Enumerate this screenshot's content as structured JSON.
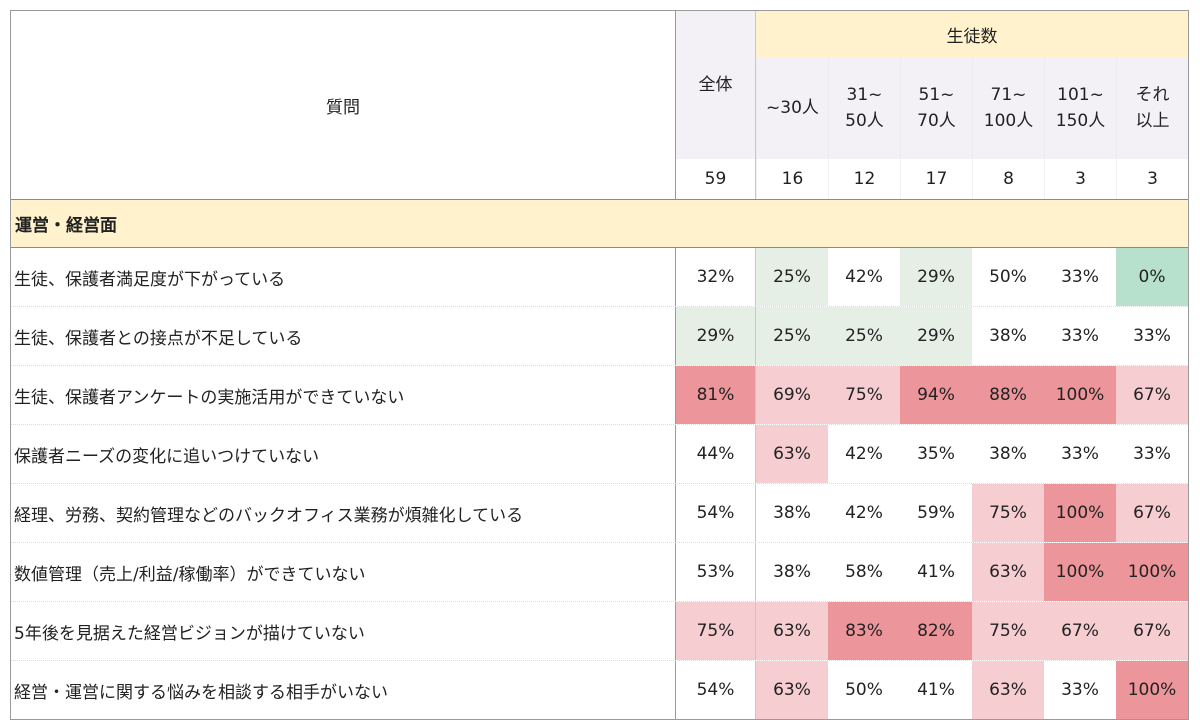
{
  "header": {
    "question_label": "質問",
    "total_label": "全体",
    "group_label": "生徒数",
    "groups": [
      "~30人",
      "31~\n50人",
      "51~\n70人",
      "71~\n100人",
      "101~\n150人",
      "それ\n以上"
    ],
    "total_count": "59",
    "group_counts": [
      "16",
      "12",
      "17",
      "8",
      "3",
      "3"
    ]
  },
  "section": {
    "label": "運営・経営面"
  },
  "rows": [
    {
      "q": "生徒、保護者満足度が下がっている",
      "total": "32%",
      "vals": [
        "25%",
        "42%",
        "29%",
        "50%",
        "33%",
        "0%"
      ]
    },
    {
      "q": "生徒、保護者との接点が不足している",
      "total": "29%",
      "vals": [
        "25%",
        "25%",
        "29%",
        "38%",
        "33%",
        "33%"
      ]
    },
    {
      "q": "生徒、保護者アンケートの実施活用ができていない",
      "total": "81%",
      "vals": [
        "69%",
        "75%",
        "94%",
        "88%",
        "100%",
        "67%"
      ]
    },
    {
      "q": "保護者ニーズの変化に追いつけていない",
      "total": "44%",
      "vals": [
        "63%",
        "42%",
        "35%",
        "38%",
        "33%",
        "33%"
      ]
    },
    {
      "q": "経理、労務、契約管理などのバックオフィス業務が煩雑化している",
      "total": "54%",
      "vals": [
        "38%",
        "42%",
        "59%",
        "75%",
        "100%",
        "67%"
      ]
    },
    {
      "q": "数値管理（売上/利益/稼働率）ができていない",
      "total": "53%",
      "vals": [
        "38%",
        "58%",
        "41%",
        "63%",
        "100%",
        "100%"
      ]
    },
    {
      "q": "5年後を見据えた経営ビジョンが描けていない",
      "total": "75%",
      "vals": [
        "63%",
        "83%",
        "82%",
        "75%",
        "67%",
        "67%"
      ]
    },
    {
      "q": "経営・運営に関する悩みを相談する相手がいない",
      "total": "54%",
      "vals": [
        "63%",
        "50%",
        "41%",
        "63%",
        "33%",
        "100%"
      ]
    }
  ],
  "colors": {
    "header_yellow": "#fff2cc",
    "header_gray": "#f3f1f5",
    "green_strong": "#b7e1cd",
    "green_light": "#e6efe6",
    "red_light": "#f6cdd1",
    "red_mid": "#f2b8bd",
    "red_strong": "#ec959b"
  },
  "chart_data": {
    "type": "heatmap",
    "title": "",
    "xlabel": "生徒数",
    "ylabel": "質問",
    "categories": [
      "全体",
      "~30人",
      "31~50人",
      "51~70人",
      "71~100人",
      "101~150人",
      "それ以上"
    ],
    "n": [
      59,
      16,
      12,
      17,
      8,
      3,
      3
    ],
    "section": "運営・経営面",
    "rows": [
      "生徒、保護者満足度が下がっている",
      "生徒、保護者との接点が不足している",
      "生徒、保護者アンケートの実施活用ができていない",
      "保護者ニーズの変化に追いつけていない",
      "経理、労務、契約管理などのバックオフィス業務が煩雑化している",
      "数値管理（売上/利益/稼働率）ができていない",
      "5年後を見据えた経営ビジョンが描けていない",
      "経営・運営に関する悩みを相談する相手がいない"
    ],
    "values": [
      [
        32,
        25,
        42,
        29,
        50,
        33,
        0
      ],
      [
        29,
        25,
        25,
        29,
        38,
        33,
        33
      ],
      [
        81,
        69,
        75,
        94,
        88,
        100,
        67
      ],
      [
        44,
        63,
        42,
        35,
        38,
        33,
        33
      ],
      [
        54,
        38,
        42,
        59,
        75,
        100,
        67
      ],
      [
        53,
        38,
        58,
        41,
        63,
        100,
        100
      ],
      [
        75,
        63,
        83,
        82,
        75,
        67,
        67
      ],
      [
        54,
        63,
        50,
        41,
        63,
        33,
        100
      ]
    ],
    "unit": "%"
  }
}
